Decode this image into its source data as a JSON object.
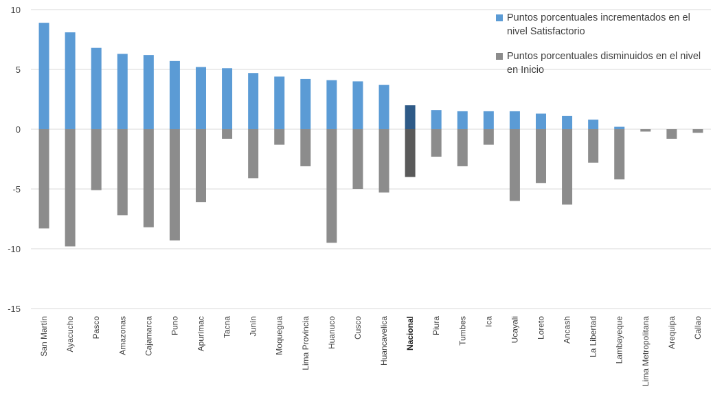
{
  "chart_data": {
    "type": "bar",
    "title": "",
    "xlabel": "",
    "ylabel": "",
    "ylim": [
      -15,
      10
    ],
    "yticks": [
      10,
      5,
      0,
      -5,
      -10,
      -15
    ],
    "grid": true,
    "legend_position": "top-right",
    "categories": [
      "San Martín",
      "Ayacucho",
      "Pasco",
      "Amazonas",
      "Cajamarca",
      "Puno",
      "Apurímac",
      "Tacna",
      "Junín",
      "Moquegua",
      "Lima Provincia",
      "Huanuco",
      "Cusco",
      "Huancavelica",
      "Nacional",
      "Piura",
      "Tumbes",
      "Ica",
      "Ucayali",
      "Loreto",
      "Ancash",
      "La Libertad",
      "Lambayeque",
      "Lima Metropolitana",
      "Arequipa",
      "Callao"
    ],
    "highlight_category": "Nacional",
    "series": [
      {
        "name": "Puntos porcentuales incrementados en el nivel Satisfactorio",
        "color": "#5b9bd5",
        "highlight_color": "#2e5a87",
        "values": [
          8.9,
          8.1,
          6.8,
          6.3,
          6.2,
          5.7,
          5.2,
          5.1,
          4.7,
          4.4,
          4.2,
          4.1,
          4.0,
          3.7,
          2.0,
          1.6,
          1.5,
          1.5,
          1.5,
          1.3,
          1.1,
          0.8,
          0.2,
          0.0,
          0.0,
          0.0
        ]
      },
      {
        "name": "Puntos porcentuales disminuidos en el nivel en Inicio",
        "color": "#8c8c8c",
        "highlight_color": "#5a5a5a",
        "values": [
          -8.3,
          -9.8,
          -5.1,
          -7.2,
          -8.2,
          -9.3,
          -6.1,
          -0.8,
          -4.1,
          -1.3,
          -3.1,
          -9.5,
          -5.0,
          -5.3,
          -4.0,
          -2.3,
          -3.1,
          -1.3,
          -6.0,
          -4.5,
          -6.3,
          -2.8,
          -4.2,
          -0.2,
          -0.8,
          -0.3
        ]
      }
    ]
  }
}
